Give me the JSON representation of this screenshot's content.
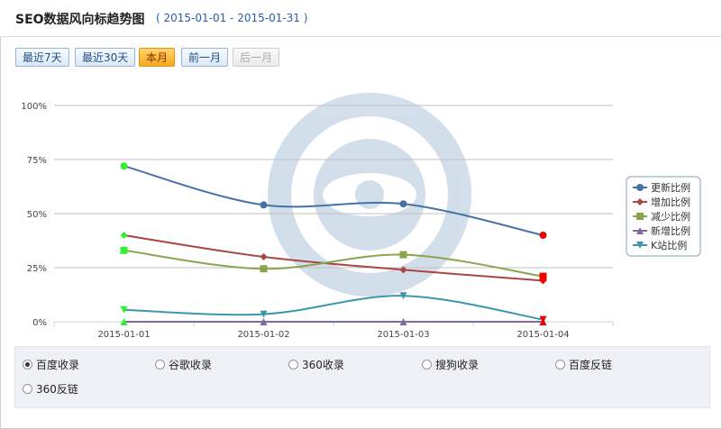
{
  "header": {
    "title": "SEO数据风向标趋势图",
    "range": "( 2015-01-01 - 2015-01-31 )"
  },
  "toolbar": {
    "buttons": [
      {
        "label": "最近7天",
        "state": "normal"
      },
      {
        "label": "最近30天",
        "state": "normal"
      },
      {
        "label": "本月",
        "state": "active"
      },
      {
        "label": "前一月",
        "state": "normal"
      },
      {
        "label": "后一月",
        "state": "disabled"
      }
    ]
  },
  "chart_data": {
    "type": "line",
    "categories": [
      "2015-01-01",
      "2015-01-02",
      "2015-01-03",
      "2015-01-04"
    ],
    "y_ticks": [
      "100%",
      "75%",
      "50%",
      "25%",
      "0%"
    ],
    "ylim": [
      0,
      100
    ],
    "grid": true,
    "legend_position": "right",
    "series": [
      {
        "name": "更新比例",
        "values": [
          72,
          54,
          54.5,
          40
        ],
        "color": "#4572a7",
        "marker": "circle"
      },
      {
        "name": "增加比例",
        "values": [
          40,
          30,
          24,
          19
        ],
        "color": "#aa4643",
        "marker": "diamond"
      },
      {
        "name": "减少比例",
        "values": [
          33,
          24.5,
          31,
          21
        ],
        "color": "#89a54e",
        "marker": "square"
      },
      {
        "name": "新增比例",
        "values": [
          0,
          0,
          0,
          0
        ],
        "color": "#80699b",
        "marker": "triangle"
      },
      {
        "name": "K站比例",
        "values": [
          5.5,
          3.5,
          12,
          1
        ],
        "color": "#3d96ae",
        "marker": "triangle-down"
      }
    ]
  },
  "footer": {
    "options": [
      {
        "label": "百度收录",
        "checked": true
      },
      {
        "label": "谷歌收录",
        "checked": false
      },
      {
        "label": "360收录",
        "checked": false
      },
      {
        "label": "搜狗收录",
        "checked": false
      },
      {
        "label": "百度反链",
        "checked": false
      },
      {
        "label": "360反链",
        "checked": false
      }
    ]
  }
}
